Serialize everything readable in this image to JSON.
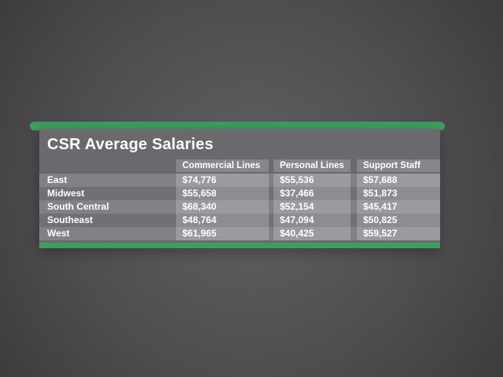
{
  "colors": {
    "accent_green": "#3E9D5F",
    "panel_gray": "#6A696E"
  },
  "table": {
    "title": "CSR Average Salaries",
    "columns": [
      "Commercial Lines",
      "Personal Lines",
      "Support Staff"
    ],
    "rows": [
      {
        "label": "East",
        "values": [
          "$74,776",
          "$55,536",
          "$57,688"
        ]
      },
      {
        "label": "Midwest",
        "values": [
          "$55,658",
          "$37,466",
          "$51,873"
        ]
      },
      {
        "label": "South Central",
        "values": [
          "$68,340",
          "$52,154",
          "$45,417"
        ]
      },
      {
        "label": "Southeast",
        "values": [
          "$48,764",
          "$47,094",
          "$50,825"
        ]
      },
      {
        "label": "West",
        "values": [
          "$61,965",
          "$40,425",
          "$59,527"
        ]
      }
    ]
  },
  "chart_data": {
    "type": "table",
    "title": "CSR Average Salaries",
    "categories": [
      "East",
      "Midwest",
      "South Central",
      "Southeast",
      "West"
    ],
    "series": [
      {
        "name": "Commercial Lines",
        "values": [
          74776,
          55658,
          68340,
          48764,
          61965
        ]
      },
      {
        "name": "Personal Lines",
        "values": [
          55536,
          37466,
          52154,
          47094,
          40425
        ]
      },
      {
        "name": "Support Staff",
        "values": [
          57688,
          51873,
          45417,
          50825,
          59527
        ]
      }
    ],
    "value_format": "USD currency, thousands separator",
    "layout": "rows striped light/dark gray on dark gray panel, green accent bars top and bottom, white bold text"
  }
}
